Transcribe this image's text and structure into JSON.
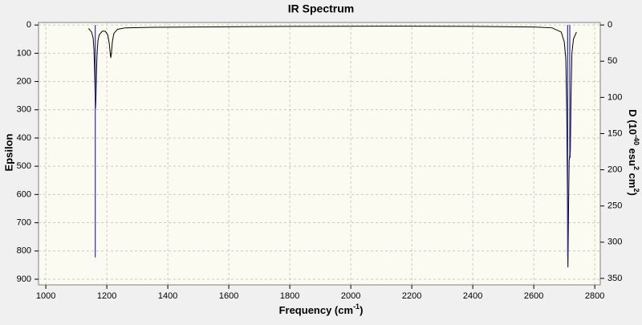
{
  "chart_data": {
    "type": "line",
    "title": "IR Spectrum",
    "xlabel": [
      "Frequency (cm",
      "-1",
      ")"
    ],
    "ylabel": "Epsilon",
    "y2label": [
      "D (10",
      "-40",
      " esu",
      "2",
      " cm",
      "2",
      ")"
    ],
    "xlim": [
      976,
      2818
    ],
    "xticks": [
      1000,
      1200,
      1400,
      1600,
      1800,
      2000,
      2200,
      2400,
      2600,
      2800
    ],
    "ylim": [
      -9,
      920
    ],
    "yticks": [
      0,
      100,
      200,
      300,
      400,
      500,
      600,
      700,
      800,
      900
    ],
    "y2lim": [
      -3.5,
      359
    ],
    "y2ticks": [
      0,
      50,
      100,
      150,
      200,
      250,
      300,
      350
    ],
    "y_inverted": true,
    "grid": true,
    "series": [
      {
        "type": "line",
        "color": "#000000",
        "x": [
          1140,
          1150,
          1155,
          1158,
          1160,
          1162,
          1163,
          1164,
          1166,
          1168,
          1171,
          1175,
          1185,
          1195,
          1203,
          1208,
          1211,
          1213,
          1215,
          1218,
          1223,
          1235,
          1260,
          1350,
          1500,
          1800,
          2100,
          2400,
          2600,
          2660,
          2690,
          2700,
          2705,
          2708,
          2710,
          2712,
          2714,
          2716,
          2718,
          2719,
          2720,
          2722,
          2725,
          2730,
          2740
        ],
        "values": [
          12,
          25,
          45,
          90,
          170,
          270,
          296,
          270,
          170,
          100,
          55,
          35,
          22,
          22,
          35,
          65,
          100,
          116,
          100,
          60,
          30,
          15,
          10,
          8,
          7,
          5,
          4,
          5,
          7,
          10,
          25,
          60,
          120,
          300,
          560,
          858,
          650,
          480,
          460,
          470,
          440,
          260,
          100,
          50,
          25
        ]
      },
      {
        "type": "stick",
        "axis": "y2",
        "color": "#2b2bb8",
        "x": [
          1162,
          2711,
          2718
        ],
        "values": [
          321,
          319,
          182
        ]
      }
    ]
  }
}
